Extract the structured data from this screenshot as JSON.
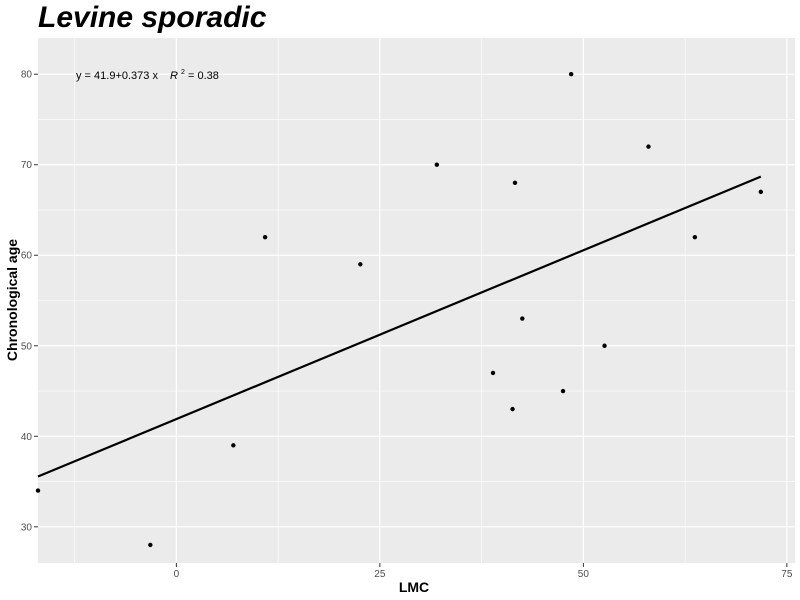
{
  "chart_data": {
    "type": "scatter",
    "title": "Levine sporadic",
    "xlabel": "LMC",
    "ylabel": "Chronological age",
    "xlim": [
      -17,
      76
    ],
    "ylim": [
      26,
      84
    ],
    "x_ticks": [
      0,
      25,
      50,
      75
    ],
    "y_ticks": [
      30,
      40,
      50,
      60,
      70,
      80
    ],
    "grid": true,
    "background": "#ebebeb",
    "grid_color": "#ffffff",
    "point_color": "#000000",
    "points": [
      {
        "x": -17.0,
        "y": 34
      },
      {
        "x": -3.2,
        "y": 28
      },
      {
        "x": 7.0,
        "y": 39
      },
      {
        "x": 10.9,
        "y": 62
      },
      {
        "x": 22.6,
        "y": 59
      },
      {
        "x": 32.0,
        "y": 70
      },
      {
        "x": 38.9,
        "y": 47
      },
      {
        "x": 41.3,
        "y": 43
      },
      {
        "x": 41.6,
        "y": 68
      },
      {
        "x": 42.5,
        "y": 53
      },
      {
        "x": 47.5,
        "y": 45
      },
      {
        "x": 48.5,
        "y": 80
      },
      {
        "x": 52.6,
        "y": 50
      },
      {
        "x": 58.0,
        "y": 72
      },
      {
        "x": 63.7,
        "y": 62
      },
      {
        "x": 71.8,
        "y": 67
      }
    ],
    "fit_line": {
      "intercept": 41.9,
      "slope": 0.373,
      "x_start": -17.0,
      "x_end": 71.8,
      "color": "#000000"
    },
    "annotation": {
      "equation": "y = 41.9+0.373 x",
      "r2_label": "R",
      "r2_exp": "2",
      "r2_value": " = 0.38"
    }
  }
}
